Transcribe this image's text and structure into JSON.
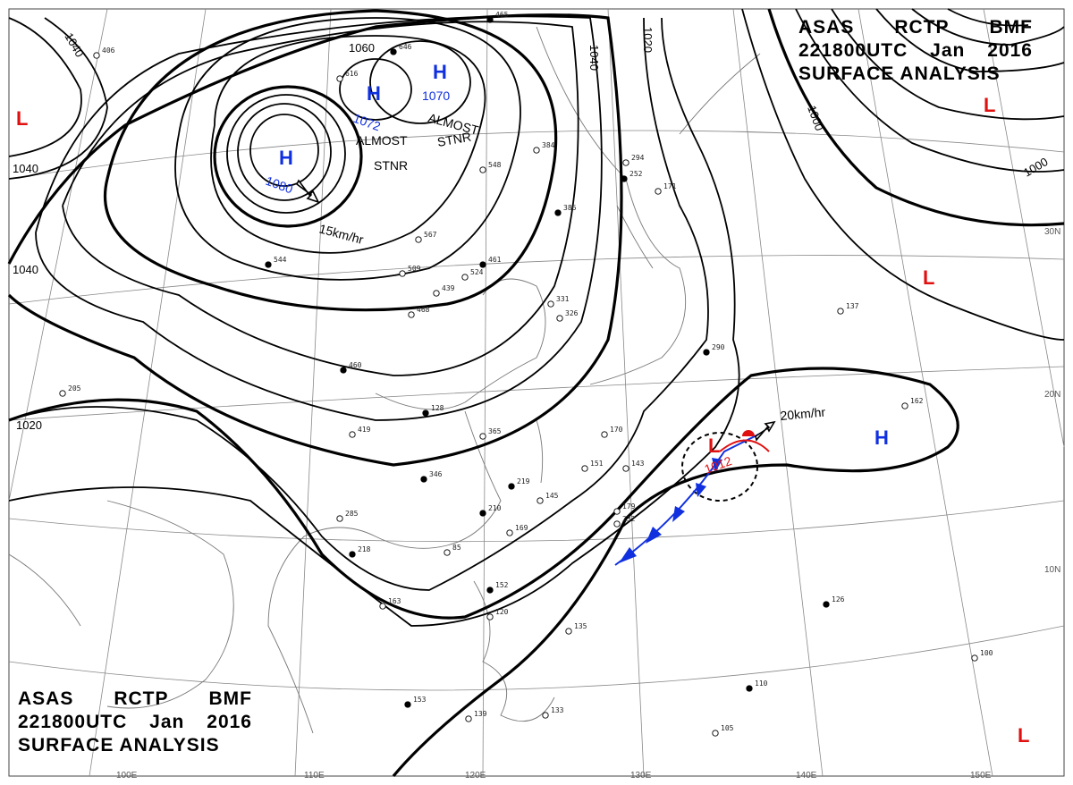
{
  "title": {
    "line1": [
      "ASAS",
      "RCTP",
      "BMF"
    ],
    "line2": [
      "221800UTC",
      "Jan",
      "2016"
    ],
    "line3": "SURFACE ANALYSIS"
  },
  "lat_labels": [
    "30N",
    "20N",
    "10N"
  ],
  "lon_labels": [
    "100E",
    "110E",
    "120E",
    "130E",
    "140E",
    "150E"
  ],
  "isobar_labels": [
    "1040",
    "1040",
    "1040",
    "1020",
    "1060",
    "1040",
    "1020",
    "1000",
    "1000"
  ],
  "highs": [
    {
      "symbol": "H",
      "pressure": "1080"
    },
    {
      "symbol": "H",
      "pressure": "1072"
    },
    {
      "symbol": "H",
      "pressure": "1070"
    },
    {
      "symbol": "H",
      "pressure": ""
    }
  ],
  "lows": [
    {
      "symbol": "L",
      "pressure": ""
    },
    {
      "symbol": "L",
      "pressure": ""
    },
    {
      "symbol": "L",
      "pressure": ""
    },
    {
      "symbol": "L",
      "pressure": "1012"
    }
  ],
  "notes": {
    "almost_stnr_1": [
      "ALMOST",
      "STNR"
    ],
    "almost_stnr_2": [
      "ALMOST",
      "STNR"
    ],
    "motion_high": "15km/hr",
    "motion_low": "20km/hr"
  },
  "colors": {
    "high": "#1030e0",
    "low": "#e01010",
    "front_cold": "#1030e0",
    "front_warm": "#e01010"
  },
  "station_values": [
    "465",
    "406",
    "616",
    "646",
    "384",
    "294",
    "386",
    "548",
    "567",
    "544",
    "509",
    "524",
    "461",
    "439",
    "468",
    "460",
    "205",
    "419",
    "128",
    "365",
    "170",
    "346",
    "151",
    "143",
    "219",
    "145",
    "179",
    "210",
    "169",
    "285",
    "218",
    "85",
    "163",
    "152",
    "120",
    "135",
    "153",
    "139",
    "133",
    "110",
    "137",
    "162",
    "126",
    "100",
    "105",
    "290",
    "171",
    "232",
    "252",
    "331",
    "326"
  ]
}
